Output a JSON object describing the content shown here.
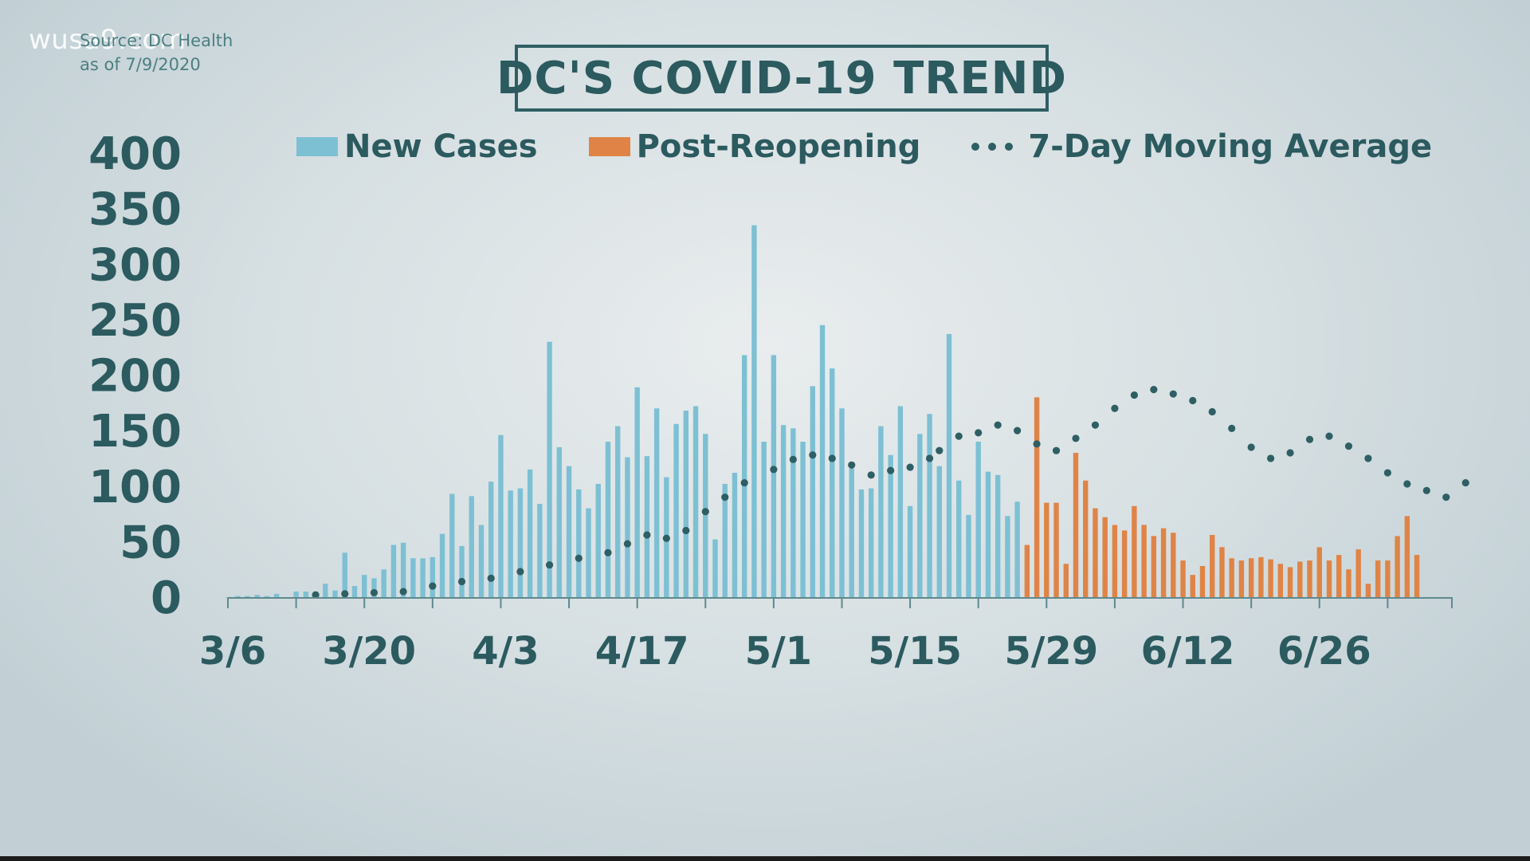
{
  "watermark": "wusa9.com",
  "source": {
    "line1": "Source: DC Health",
    "line2": "as of 7/9/2020"
  },
  "chart_data": {
    "type": "bar",
    "title": "DC'S COVID-19 TREND",
    "legend": [
      {
        "name": "New Cases",
        "color": "#7dc0d3"
      },
      {
        "name": "Post-Reopening",
        "color": "#df8446"
      },
      {
        "name": "7-Day Moving Average",
        "color": "#2e5f64"
      }
    ],
    "ylim": [
      0,
      400
    ],
    "yticks": [
      0,
      50,
      100,
      150,
      200,
      250,
      300,
      350,
      400
    ],
    "xtick_labels": [
      "3/6",
      "3/20",
      "4/3",
      "4/17",
      "5/1",
      "5/15",
      "5/29",
      "6/12",
      "6/26"
    ],
    "start_date": "3/6",
    "reopening_date": "5/29",
    "grid": false,
    "legend_placement": "top",
    "series": [
      {
        "name": "New Cases",
        "start": "3/6",
        "values": [
          0,
          1,
          1,
          2,
          1,
          3,
          0,
          5,
          5,
          5,
          12,
          6,
          40,
          10,
          20,
          17,
          25,
          47,
          49,
          35,
          35,
          36,
          57,
          93,
          46,
          91,
          65,
          104,
          146,
          96,
          98,
          115,
          84,
          230,
          135,
          118,
          97,
          80,
          102,
          140,
          154,
          126,
          189,
          127,
          170,
          108,
          156,
          168,
          172,
          147,
          52,
          102,
          112,
          218,
          335,
          140,
          218,
          155,
          152,
          140,
          190,
          245,
          206,
          170,
          116,
          97,
          98,
          154,
          128,
          172,
          82,
          147,
          165,
          118,
          237,
          105,
          74,
          140,
          113,
          110,
          73,
          86
        ]
      },
      {
        "name": "Post-Reopening",
        "start": "5/29",
        "values": [
          47,
          180,
          85,
          85,
          30,
          130,
          105,
          80,
          72,
          65,
          60,
          82,
          65,
          55,
          62,
          58,
          33,
          20,
          28,
          56,
          45,
          35,
          33,
          35,
          36,
          34,
          30,
          27,
          32,
          33,
          45,
          33,
          38,
          25,
          43,
          12,
          33,
          33,
          55,
          73,
          38
        ]
      },
      {
        "name": "7-Day Moving Average",
        "start": "3/6",
        "x_offsets": [
          9,
          12,
          15,
          18,
          21,
          24,
          27,
          30,
          33,
          36,
          39,
          41,
          43,
          45,
          47,
          49,
          51,
          53,
          56,
          58,
          60,
          62,
          64,
          66,
          68,
          70,
          72,
          73,
          75,
          77,
          79,
          81,
          83,
          85,
          87,
          89,
          91,
          93,
          95,
          97,
          99,
          101,
          103,
          105,
          107,
          109,
          111,
          113,
          115,
          117,
          119,
          121,
          123,
          125,
          127
        ],
        "values": [
          2,
          3,
          4,
          5,
          10,
          14,
          17,
          23,
          29,
          35,
          40,
          48,
          56,
          53,
          60,
          77,
          90,
          103,
          115,
          124,
          128,
          125,
          119,
          110,
          114,
          117,
          125,
          132,
          145,
          148,
          155,
          150,
          138,
          132,
          143,
          155,
          170,
          182,
          187,
          183,
          177,
          167,
          152,
          135,
          125,
          130,
          142,
          145,
          136,
          125,
          112,
          102,
          96,
          90,
          103
        ]
      }
    ]
  }
}
